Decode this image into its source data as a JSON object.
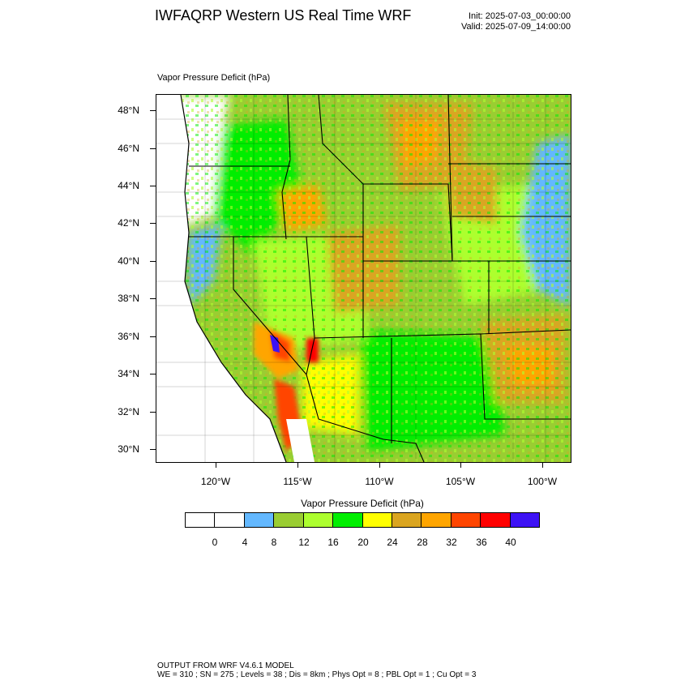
{
  "header": {
    "title": "IWFAQRP Western US Real Time WRF",
    "init": "Init: 2025-07-03_00:00:00",
    "valid": "Valid: 2025-07-09_14:00:00"
  },
  "map": {
    "field_label": "Vapor Pressure Deficit   (hPa)",
    "lat_labels": [
      "48°N",
      "46°N",
      "44°N",
      "42°N",
      "40°N",
      "38°N",
      "36°N",
      "34°N",
      "32°N",
      "30°N"
    ],
    "lon_labels": [
      "120°W",
      "115°W",
      "110°W",
      "105°W",
      "100°W"
    ]
  },
  "colorbar": {
    "title": "Vapor Pressure Deficit  (hPa)",
    "levels": [
      "0",
      "4",
      "8",
      "12",
      "16",
      "20",
      "24",
      "28",
      "32",
      "36",
      "40"
    ],
    "colors": [
      "#ffffff",
      "#ffffff",
      "#63b8ff",
      "#9acd32",
      "#adff2f",
      "#00ee00",
      "#ffff00",
      "#daa520",
      "#ffa500",
      "#ff4500",
      "#ff0000",
      "#3d12f5"
    ]
  },
  "footer": {
    "line1": "OUTPUT FROM WRF V4.6.1 MODEL",
    "line2": "WE = 310 ; SN = 275 ; Levels = 38 ; Dis = 8km ; Phys Opt = 8 ; PBL Opt = 1 ; Cu Opt = 3"
  }
}
